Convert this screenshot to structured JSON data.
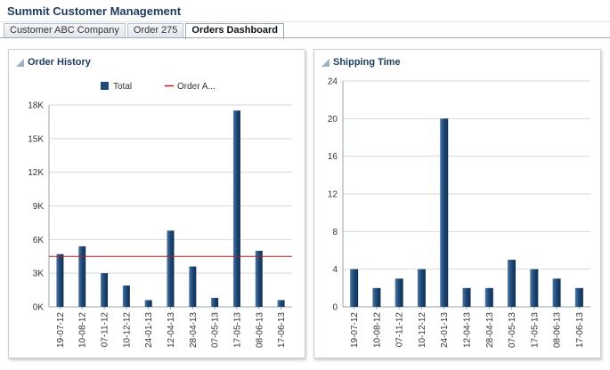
{
  "app": {
    "title": "Summit Customer Management"
  },
  "tabs": [
    {
      "label": "Customer ABC Company",
      "active": false
    },
    {
      "label": "Order 275",
      "active": false
    },
    {
      "label": "Orders Dashboard",
      "active": true
    }
  ],
  "panels": {
    "order_history": {
      "title": "Order History"
    },
    "shipping_time": {
      "title": "Shipping Time"
    }
  },
  "colors": {
    "bar": "#1f4a78",
    "reference_line": "#c0191a",
    "grid": "#d3d9df",
    "title": "#1d3a5f"
  },
  "chart_data": [
    {
      "type": "bar",
      "title": "Order History",
      "categories": [
        "19-07-12",
        "10-08-12",
        "07-11-12",
        "10-12-12",
        "24-01-13",
        "12-04-13",
        "28-04-13",
        "07-05-13",
        "17-05-13",
        "08-06-13",
        "17-06-13"
      ],
      "series": [
        {
          "name": "Total",
          "values": [
            4700,
            5400,
            3000,
            1900,
            600,
            6800,
            3600,
            800,
            17500,
            5000,
            600
          ]
        }
      ],
      "reference_line": {
        "name": "Order A...",
        "value": 4500
      },
      "legend": [
        "Total",
        "Order A..."
      ],
      "yticks": [
        "0K",
        "3K",
        "6K",
        "9K",
        "12K",
        "15K",
        "18K"
      ],
      "ylim": [
        0,
        18000
      ],
      "grid": true,
      "legend_position": "top"
    },
    {
      "type": "bar",
      "title": "Shipping Time",
      "categories": [
        "19-07-12",
        "10-08-12",
        "07-11-12",
        "10-12-12",
        "24-01-13",
        "12-04-13",
        "28-04-13",
        "07-05-13",
        "17-05-13",
        "08-06-13",
        "17-06-13"
      ],
      "series": [
        {
          "values": [
            4,
            2,
            3,
            4,
            20,
            2,
            2,
            5,
            4,
            3,
            2
          ]
        }
      ],
      "yticks": [
        "0",
        "4",
        "8",
        "12",
        "16",
        "20",
        "24"
      ],
      "ylim": [
        0,
        24
      ],
      "grid": true
    }
  ]
}
